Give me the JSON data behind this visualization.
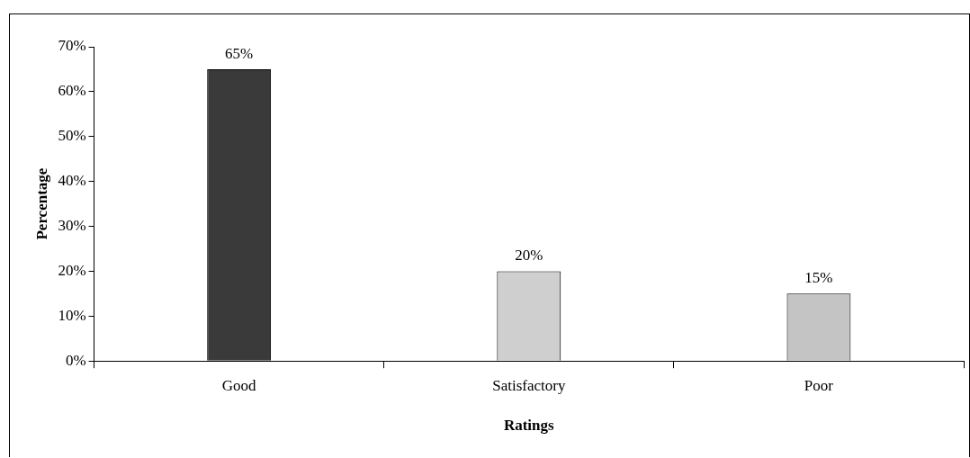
{
  "chart_data": {
    "type": "bar",
    "xlabel": "Ratings",
    "ylabel": "Percentage",
    "categories": [
      "Good",
      "Satisfactory",
      "Poor"
    ],
    "values": [
      65,
      20,
      15
    ],
    "colors": [
      "#3a3a3a",
      "#cfcfcf",
      "#c4c4c4"
    ],
    "value_labels": [
      "65%",
      "20%",
      "15%"
    ],
    "ylim": [
      0,
      70
    ],
    "yticks": [
      {
        "value": 0,
        "label": "0%"
      },
      {
        "value": 10,
        "label": "10%"
      },
      {
        "value": 20,
        "label": "20%"
      },
      {
        "value": 30,
        "label": "30%"
      },
      {
        "value": 40,
        "label": "40%"
      },
      {
        "value": 50,
        "label": "50%"
      },
      {
        "value": 60,
        "label": "60%"
      },
      {
        "value": 70,
        "label": "70%"
      }
    ],
    "grid": false,
    "legend": false
  }
}
